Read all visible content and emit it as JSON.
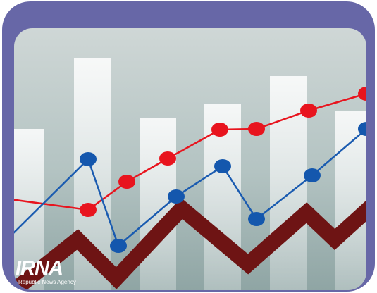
{
  "watermark": {
    "logo": "IRNA",
    "tagline": "Republic News Agency"
  }
}
